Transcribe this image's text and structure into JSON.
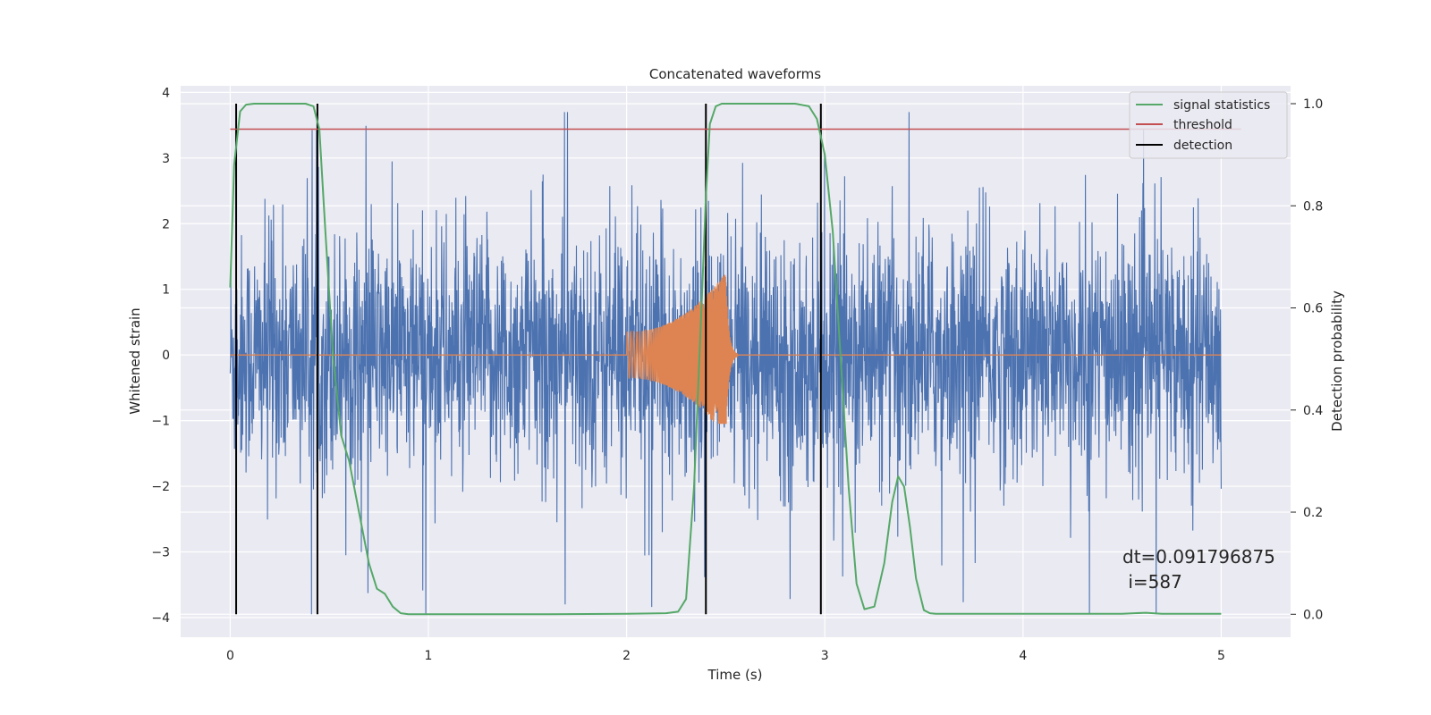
{
  "chart_data": {
    "type": "line",
    "title": "Concatenated waveforms",
    "xlabel": "Time (s)",
    "ylabel": "Whitened strain",
    "y2label": "Detection probability",
    "xlim": [
      -0.25,
      5.35
    ],
    "ylim": [
      -4.3,
      4.1
    ],
    "y2lim": [
      -0.045,
      1.035
    ],
    "xticks": [
      0,
      1,
      2,
      3,
      4,
      5
    ],
    "yticks": [
      -4,
      -3,
      -2,
      -1,
      0,
      1,
      2,
      3,
      4
    ],
    "y2ticks": [
      0.0,
      0.2,
      0.4,
      0.6,
      0.8,
      1.0
    ],
    "xtick_labels": [
      "0",
      "1",
      "2",
      "3",
      "4",
      "5"
    ],
    "ytick_labels": [
      "−4",
      "−3",
      "−2",
      "−1",
      "0",
      "1",
      "2",
      "3",
      "4"
    ],
    "y2tick_labels": [
      "0.0",
      "0.2",
      "0.4",
      "0.6",
      "0.8",
      "1.0"
    ],
    "grid": true,
    "legend_position": "top-right",
    "colors": {
      "background": "#eaeaf2",
      "strain": "#4c72b0",
      "template": "#dd8452",
      "signal": "#55a868",
      "threshold": "#c44e52",
      "detection": "#000000"
    },
    "series": [
      {
        "name": "",
        "axis": "left",
        "kind": "noise",
        "x_range": [
          0,
          5
        ],
        "typical_amplitude": 1.5,
        "peak_amplitude": 3.7,
        "min_value": -3.95
      },
      {
        "name": "",
        "axis": "left",
        "kind": "chirp",
        "x_range": [
          0,
          5
        ],
        "chirp_start": 2.0,
        "chirp_merger": 2.5,
        "chirp_start_amplitude": 0.35,
        "chirp_peak_amplitude": 1.25,
        "chirp_min": -1.05
      },
      {
        "name": "signal statistics",
        "axis": "right",
        "x": [
          0.0,
          0.02,
          0.05,
          0.08,
          0.12,
          0.2,
          0.3,
          0.38,
          0.42,
          0.45,
          0.48,
          0.52,
          0.56,
          0.6,
          0.65,
          0.7,
          0.74,
          0.78,
          0.82,
          0.86,
          0.9,
          1.2,
          1.6,
          2.0,
          2.2,
          2.26,
          2.3,
          2.34,
          2.38,
          2.4,
          2.42,
          2.45,
          2.48,
          2.55,
          2.7,
          2.85,
          2.92,
          2.96,
          3.0,
          3.04,
          3.08,
          3.12,
          3.16,
          3.2,
          3.25,
          3.3,
          3.34,
          3.37,
          3.4,
          3.43,
          3.46,
          3.5,
          3.53,
          3.56,
          3.6,
          4.0,
          4.5,
          4.62,
          4.7,
          5.0
        ],
        "y": [
          0.64,
          0.88,
          0.985,
          0.998,
          1.0,
          1.0,
          1.0,
          1.0,
          0.995,
          0.95,
          0.75,
          0.5,
          0.35,
          0.3,
          0.2,
          0.1,
          0.05,
          0.04,
          0.015,
          0.002,
          0.0,
          0.0,
          0.0,
          0.001,
          0.002,
          0.005,
          0.03,
          0.25,
          0.62,
          0.82,
          0.96,
          0.995,
          1.0,
          1.0,
          1.0,
          1.0,
          0.995,
          0.97,
          0.9,
          0.75,
          0.5,
          0.25,
          0.06,
          0.01,
          0.015,
          0.1,
          0.22,
          0.27,
          0.25,
          0.17,
          0.07,
          0.008,
          0.002,
          0.001,
          0.001,
          0.001,
          0.001,
          0.003,
          0.001,
          0.001
        ]
      },
      {
        "name": "threshold",
        "axis": "right",
        "x": [
          0,
          5.1
        ],
        "y": [
          0.95,
          0.95
        ]
      },
      {
        "name": "detection",
        "axis": "right",
        "vlines": [
          0.03,
          0.44,
          2.4,
          2.98
        ],
        "ymin": 0.0,
        "ymax": 1.0
      }
    ],
    "legend": [
      "signal statistics",
      "threshold",
      "detection"
    ],
    "annotation": {
      "line1": "dt=0.091796875",
      "line2": " i=587",
      "x": 4.5,
      "y": 0.1
    }
  }
}
